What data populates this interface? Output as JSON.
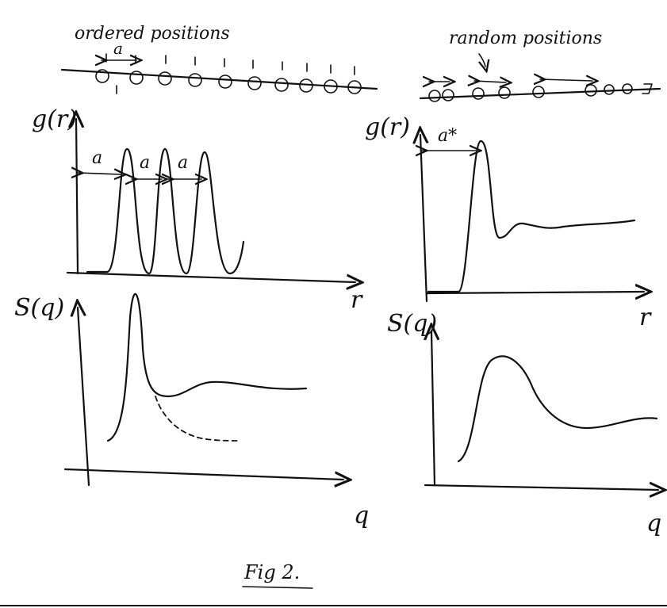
{
  "ordered": {
    "label": "ordered positions",
    "spacing_label": "a",
    "gr_axis_label": "g(r)",
    "gr_x_label": "r",
    "gr_spacing_labels": [
      "a",
      "a",
      "a"
    ],
    "sq_axis_label": "S(q)",
    "sq_x_label": "q"
  },
  "random": {
    "label": "random positions",
    "gr_axis_label": "g(r)",
    "gr_spacing_label": "a*",
    "gr_x_label": "r",
    "sq_axis_label": "S(q)",
    "sq_x_label": "q"
  },
  "caption": "Fig 2."
}
